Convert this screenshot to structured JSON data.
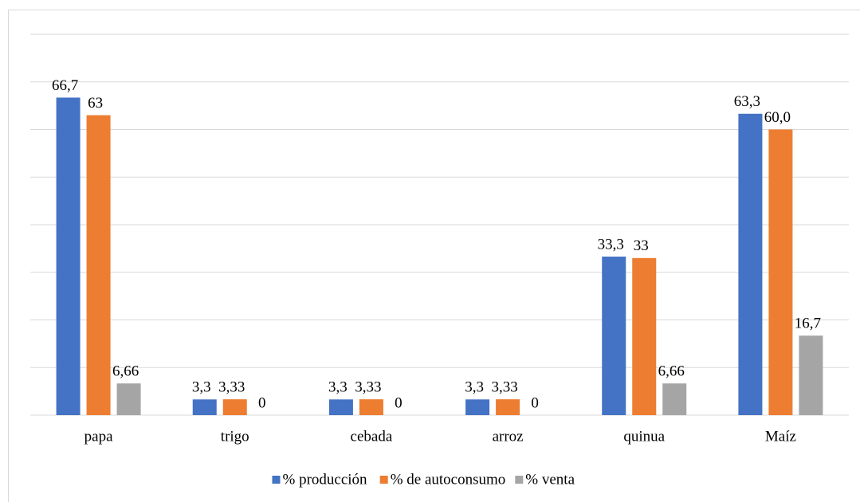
{
  "chart_data": {
    "type": "bar",
    "categories": [
      "papa",
      "trigo",
      "cebada",
      "arroz",
      "quinua",
      "Maíz"
    ],
    "series": [
      {
        "name": "% producción",
        "color": "#4472c4",
        "values": [
          66.7,
          3.3,
          3.3,
          3.3,
          33.3,
          63.3
        ],
        "value_labels": [
          "66,7",
          "3,3",
          "3,3",
          "3,3",
          "33,3",
          "63,3"
        ]
      },
      {
        "name": "% de autoconsumo",
        "color": "#ed7d31",
        "values": [
          63,
          3.33,
          3.33,
          3.33,
          33,
          60.0
        ],
        "value_labels": [
          "63",
          "3,33",
          "3,33",
          "3,33",
          "33",
          "60,0"
        ]
      },
      {
        "name": "% venta",
        "color": "#a5a5a5",
        "values": [
          6.66,
          0,
          0,
          0,
          6.66,
          16.7
        ],
        "value_labels": [
          "6,66",
          "0",
          "0",
          "0",
          "6,66",
          "16,7"
        ]
      }
    ],
    "ylim": [
      0,
      80
    ],
    "yticks": [
      0,
      10,
      20,
      30,
      40,
      50,
      60,
      70,
      80
    ],
    "grid": true,
    "legend": "bottom"
  }
}
